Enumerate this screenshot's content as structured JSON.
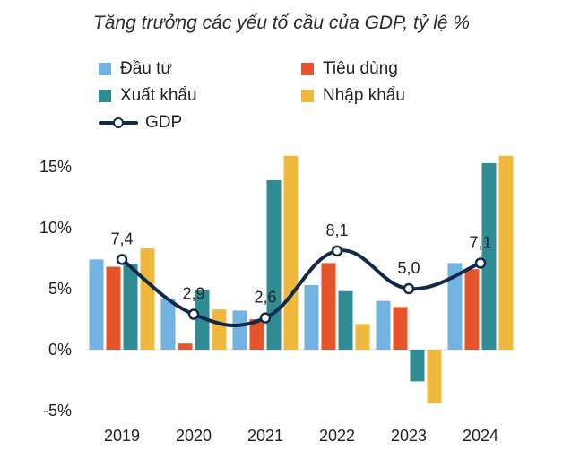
{
  "chart_data": {
    "type": "bar",
    "title": "Tăng trưởng các yếu tố cầu của GDP, tỷ lệ %",
    "categories": [
      "2019",
      "2020",
      "2021",
      "2022",
      "2023",
      "2024"
    ],
    "ylim": [
      -5,
      15
    ],
    "yticks": [
      {
        "value": 15,
        "label": "15%"
      },
      {
        "value": 10,
        "label": "10%"
      },
      {
        "value": 5,
        "label": "5%"
      },
      {
        "value": 0,
        "label": "0%"
      },
      {
        "value": -5,
        "label": "-5%"
      }
    ],
    "series": [
      {
        "name": "Đầu tư",
        "color": "#72b3e2",
        "values": [
          7.4,
          4.2,
          3.2,
          5.3,
          4.0,
          7.1
        ]
      },
      {
        "name": "Tiêu dùng",
        "color": "#e5552b",
        "values": [
          6.8,
          0.5,
          2.5,
          7.1,
          3.5,
          6.6
        ]
      },
      {
        "name": "Xuất khẩu",
        "color": "#2f8c93",
        "values": [
          7.0,
          4.9,
          13.9,
          4.8,
          -2.6,
          15.3
        ]
      },
      {
        "name": "Nhập khẩu",
        "color": "#f0b83c",
        "values": [
          8.3,
          3.3,
          15.9,
          2.1,
          -4.4,
          15.9
        ]
      }
    ],
    "line": {
      "name": "GDP",
      "color": "#13294b",
      "values": [
        7.4,
        2.9,
        2.6,
        8.1,
        5.0,
        7.1
      ],
      "labels": [
        "7,4",
        "2,9",
        "2,6",
        "8,1",
        "5,0",
        "7,1"
      ]
    },
    "legend": [
      {
        "label": "Đầu tư",
        "color": "#72b3e2"
      },
      {
        "label": "Tiêu dùng",
        "color": "#e5552b"
      },
      {
        "label": "Xuất khẩu",
        "color": "#2f8c93"
      },
      {
        "label": "Nhập khẩu",
        "color": "#f0b83c"
      },
      {
        "label": "GDP",
        "color": "#13294b"
      }
    ]
  }
}
